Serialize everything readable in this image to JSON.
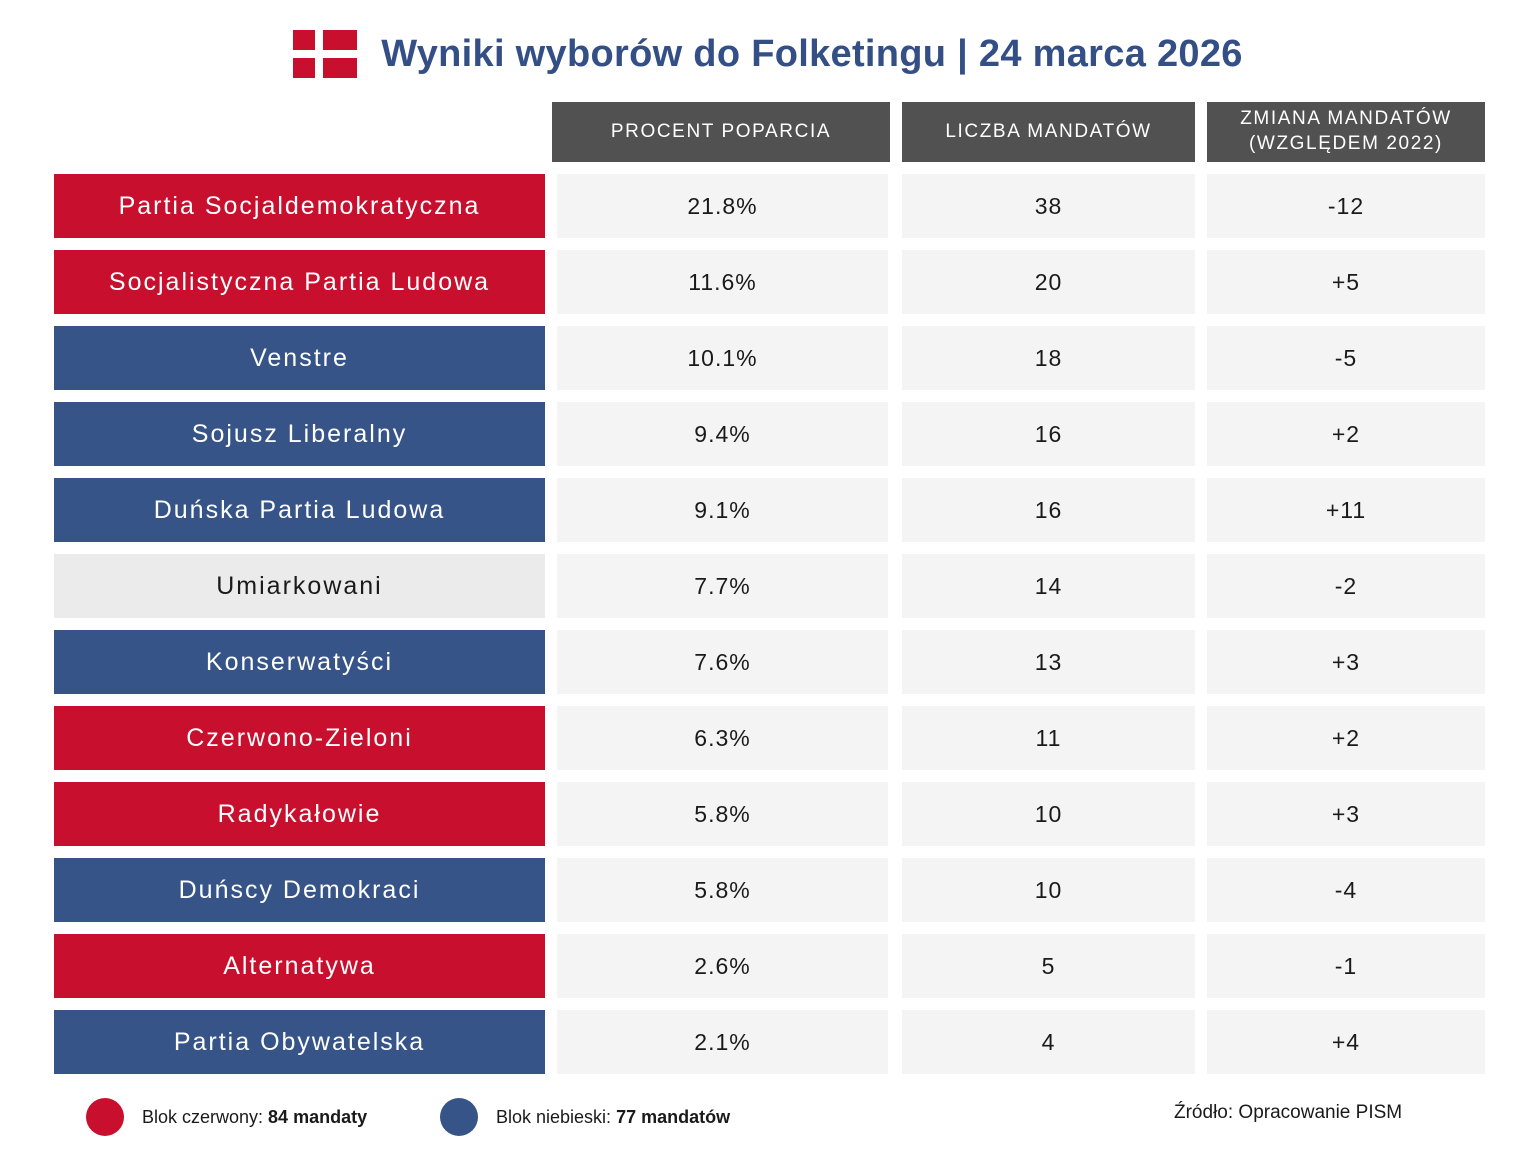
{
  "title": "Wyniki wyborów do Folketingu | 24 marca 2026",
  "colors": {
    "red_bloc": "#c8102e",
    "blue_bloc": "#365487",
    "neutral": "#ebebeb",
    "header": "#515151",
    "title": "#344f85"
  },
  "chart_data": {
    "type": "table",
    "title": "Wyniki wyborów do Folketingu | 24 marca 2026",
    "columns": [
      "PROCENT POPARCIA",
      "LICZBA MANDATÓW",
      "ZMIANA MANDATÓW\n(WZGLĘDEM 2022)"
    ],
    "rows": [
      {
        "party": "Partia Socjaldemokratyczna",
        "bloc": "red",
        "percent": "21.8%",
        "seats": "38",
        "change": "-12"
      },
      {
        "party": "Socjalistyczna Partia Ludowa",
        "bloc": "red",
        "percent": "11.6%",
        "seats": "20",
        "change": "+5"
      },
      {
        "party": "Venstre",
        "bloc": "blue",
        "percent": "10.1%",
        "seats": "18",
        "change": "-5"
      },
      {
        "party": "Sojusz Liberalny",
        "bloc": "blue",
        "percent": "9.4%",
        "seats": "16",
        "change": "+2"
      },
      {
        "party": "Duńska Partia Ludowa",
        "bloc": "blue",
        "percent": "9.1%",
        "seats": "16",
        "change": "+11"
      },
      {
        "party": "Umiarkowani",
        "bloc": "none",
        "percent": "7.7%",
        "seats": "14",
        "change": "-2"
      },
      {
        "party": "Konserwatyści",
        "bloc": "blue",
        "percent": "7.6%",
        "seats": "13",
        "change": "+3"
      },
      {
        "party": "Czerwono-Zieloni",
        "bloc": "red",
        "percent": "6.3%",
        "seats": "11",
        "change": "+2"
      },
      {
        "party": "Radykałowie",
        "bloc": "red",
        "percent": "5.8%",
        "seats": "10",
        "change": "+3"
      },
      {
        "party": "Duńscy Demokraci",
        "bloc": "blue",
        "percent": "5.8%",
        "seats": "10",
        "change": "-4"
      },
      {
        "party": "Alternatywa",
        "bloc": "red",
        "percent": "2.6%",
        "seats": "5",
        "change": "-1"
      },
      {
        "party": "Partia Obywatelska",
        "bloc": "blue",
        "percent": "2.1%",
        "seats": "4",
        "change": "+4"
      }
    ]
  },
  "legend": {
    "red": {
      "label": "Blok czerwony:",
      "value": "84 mandaty"
    },
    "blue": {
      "label": "Blok niebieski:",
      "value": "77 mandatów"
    }
  },
  "source": "Źródło: Opracowanie PISM"
}
